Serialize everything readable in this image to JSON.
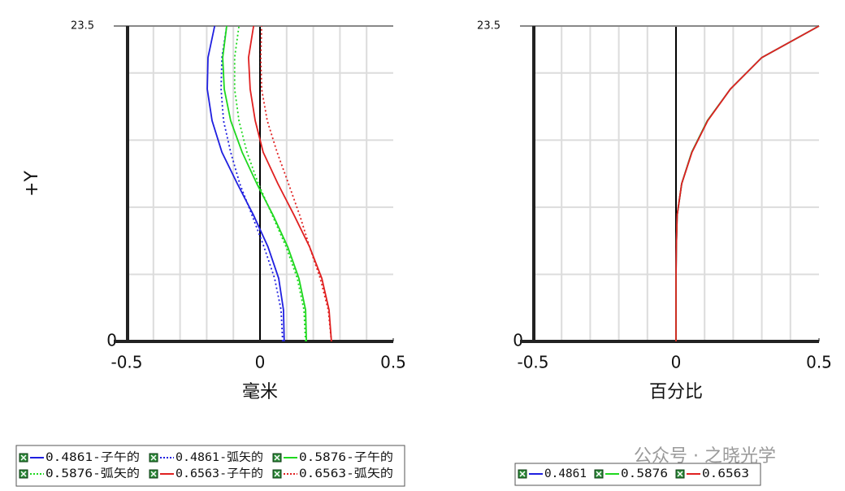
{
  "chart_data": [
    {
      "type": "line",
      "xlabel": "毫米",
      "ylabel": "+Y",
      "xlim": [
        -0.5,
        0.5
      ],
      "ylim": [
        0,
        23.5
      ],
      "xticks": [
        -0.5,
        0,
        0.5
      ],
      "yticks": [
        0,
        23.5
      ],
      "xgrid": [
        -0.4,
        -0.3,
        -0.2,
        -0.1,
        0.1,
        0.2,
        0.3,
        0.4
      ],
      "ygrid": [
        5,
        10,
        15,
        20
      ],
      "y": [
        0,
        2.35,
        4.7,
        7.05,
        9.4,
        11.75,
        14.1,
        16.45,
        18.8,
        21.15,
        23.5
      ],
      "series": [
        {
          "name": "0.4861-子午的",
          "color": "#1f1fe0",
          "dash": false,
          "values": [
            0.091,
            0.088,
            0.07,
            0.03,
            -0.024,
            -0.085,
            -0.143,
            -0.18,
            -0.198,
            -0.195,
            -0.17
          ]
        },
        {
          "name": "0.4861-弧矢的",
          "color": "#1f1fe0",
          "dash": true,
          "values": [
            0.085,
            0.079,
            0.055,
            0.015,
            -0.03,
            -0.076,
            -0.11,
            -0.137,
            -0.146,
            -0.143,
            -0.125
          ]
        },
        {
          "name": "0.5876-子午的",
          "color": "#1ed81e",
          "dash": false,
          "values": [
            0.174,
            0.171,
            0.146,
            0.104,
            0.049,
            -0.012,
            -0.067,
            -0.11,
            -0.134,
            -0.14,
            -0.125
          ]
        },
        {
          "name": "0.5876-弧矢的",
          "color": "#1ed81e",
          "dash": true,
          "values": [
            0.171,
            0.165,
            0.14,
            0.098,
            0.046,
            -0.006,
            -0.049,
            -0.079,
            -0.095,
            -0.095,
            -0.079
          ]
        },
        {
          "name": "0.6563-子午的",
          "color": "#e02020",
          "dash": false,
          "values": [
            0.268,
            0.259,
            0.232,
            0.186,
            0.128,
            0.067,
            0.012,
            -0.018,
            -0.037,
            -0.043,
            -0.024
          ]
        },
        {
          "name": "0.6563-弧矢的",
          "color": "#e02020",
          "dash": true,
          "values": [
            0.268,
            0.256,
            0.226,
            0.186,
            0.149,
            0.107,
            0.064,
            0.027,
            0.006,
            0.003,
            0.006
          ]
        }
      ]
    },
    {
      "type": "line",
      "xlabel": "百分比",
      "xlim": [
        -0.5,
        0.5
      ],
      "ylim": [
        0,
        23.5
      ],
      "xticks": [
        -0.5,
        0,
        0.5
      ],
      "yticks": [
        0,
        23.5
      ],
      "xgrid": [
        -0.4,
        -0.3,
        -0.2,
        -0.1,
        0.1,
        0.2,
        0.3,
        0.4
      ],
      "ygrid": [
        5,
        10,
        15,
        20
      ],
      "y": [
        0,
        2.35,
        4.7,
        7.05,
        9.4,
        11.75,
        14.1,
        16.45,
        18.8,
        21.15,
        23.5
      ],
      "series": [
        {
          "name": "0.4861",
          "color": "#1f1fe0",
          "dash": false,
          "values": [
            0,
            0,
            0,
            0.001,
            0.004,
            0.02,
            0.055,
            0.11,
            0.19,
            0.3,
            0.5
          ]
        },
        {
          "name": "0.5876",
          "color": "#1ed81e",
          "dash": false,
          "values": [
            0,
            0,
            0,
            0.001,
            0.004,
            0.02,
            0.055,
            0.11,
            0.19,
            0.3,
            0.5
          ]
        },
        {
          "name": "0.6563",
          "color": "#e02020",
          "dash": false,
          "values": [
            0,
            0,
            0,
            0.001,
            0.004,
            0.02,
            0.056,
            0.111,
            0.19,
            0.3,
            0.5
          ]
        }
      ]
    }
  ],
  "watermark": "公众号 · 之晓光学"
}
